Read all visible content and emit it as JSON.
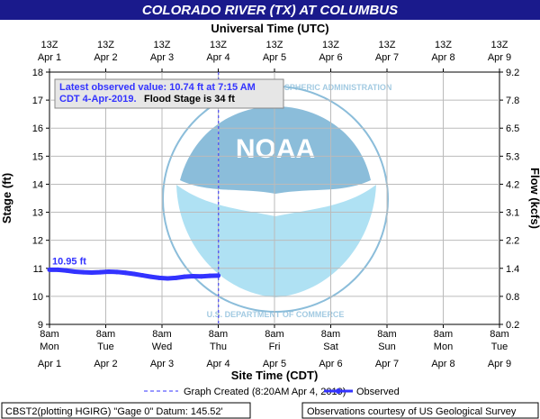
{
  "chart_data": {
    "type": "line",
    "title": "COLORADO RIVER (TX) AT COLUMBUS",
    "top_axis_title": "Universal Time (UTC)",
    "xlabel": "Site Time (CDT)",
    "ylabel": "Stage (ft)",
    "y2label": "Flow (kcfs)",
    "ylim": [
      9,
      18
    ],
    "yticks": [
      "9",
      "10",
      "11",
      "12",
      "13",
      "14",
      "15",
      "16",
      "17",
      "18"
    ],
    "y2ticks": [
      "0.2",
      "0.8",
      "1.4",
      "2.2",
      "3.1",
      "4.2",
      "5.3",
      "6.5",
      "7.8",
      "9.2"
    ],
    "x_top_ticks": [
      {
        "time": "13Z",
        "date": "Apr 1"
      },
      {
        "time": "13Z",
        "date": "Apr 2"
      },
      {
        "time": "13Z",
        "date": "Apr 3"
      },
      {
        "time": "13Z",
        "date": "Apr 4"
      },
      {
        "time": "13Z",
        "date": "Apr 5"
      },
      {
        "time": "13Z",
        "date": "Apr 6"
      },
      {
        "time": "13Z",
        "date": "Apr 7"
      },
      {
        "time": "13Z",
        "date": "Apr 8"
      },
      {
        "time": "13Z",
        "date": "Apr 9"
      }
    ],
    "x_bottom_ticks": [
      {
        "time": "8am",
        "day": "Mon",
        "date": "Apr 1"
      },
      {
        "time": "8am",
        "day": "Tue",
        "date": "Apr 2"
      },
      {
        "time": "8am",
        "day": "Wed",
        "date": "Apr 3"
      },
      {
        "time": "8am",
        "day": "Thu",
        "date": "Apr 4"
      },
      {
        "time": "8am",
        "day": "Fri",
        "date": "Apr 5"
      },
      {
        "time": "8am",
        "day": "Sat",
        "date": "Apr 6"
      },
      {
        "time": "8am",
        "day": "Sun",
        "date": "Apr 7"
      },
      {
        "time": "8am",
        "day": "Mon",
        "date": "Apr 8"
      },
      {
        "time": "8am",
        "day": "Tue",
        "date": "Apr 9"
      }
    ],
    "xlim_days": [
      0,
      8
    ],
    "graph_created_day": 3.005,
    "series": [
      {
        "name": "Observed",
        "color": "#3333ff",
        "x_days": [
          0.0,
          0.15,
          0.3,
          0.45,
          0.6,
          0.75,
          0.9,
          1.05,
          1.2,
          1.35,
          1.5,
          1.65,
          1.8,
          1.95,
          2.1,
          2.25,
          2.4,
          2.55,
          2.7,
          2.85,
          3.0
        ],
        "values": [
          10.95,
          10.95,
          10.92,
          10.88,
          10.86,
          10.85,
          10.86,
          10.88,
          10.87,
          10.84,
          10.8,
          10.75,
          10.7,
          10.66,
          10.64,
          10.66,
          10.7,
          10.72,
          10.71,
          10.73,
          10.74
        ]
      }
    ],
    "first_value_label": "10.95 ft",
    "grid": true,
    "legend_position": "bottom"
  },
  "annotation": {
    "line1": "Latest observed value: 10.74 ft at 7:15 AM",
    "line2_blue": "CDT 4-Apr-2019.",
    "line2_black": "Flood Stage is 34 ft"
  },
  "legend": {
    "graph_created": "Graph Created (8:20AM Apr 4, 2019)",
    "observed": "Observed"
  },
  "footer": {
    "left": "CBST2(plotting HGIRG) \"Gage 0\" Datum: 145.52'",
    "right": "Observations courtesy of US Geological Survey"
  },
  "watermark": {
    "text_top": "NATIONAL OCEANIC AND ATMOSPHERIC ADMINISTRATION",
    "text_bottom": "U.S. DEPARTMENT OF COMMERCE",
    "center": "NOAA"
  },
  "colors": {
    "title_bg": "#1a1a8c",
    "series": "#3333ff",
    "grid": "#bbbbbb",
    "watermark": "#7fb6d6"
  }
}
